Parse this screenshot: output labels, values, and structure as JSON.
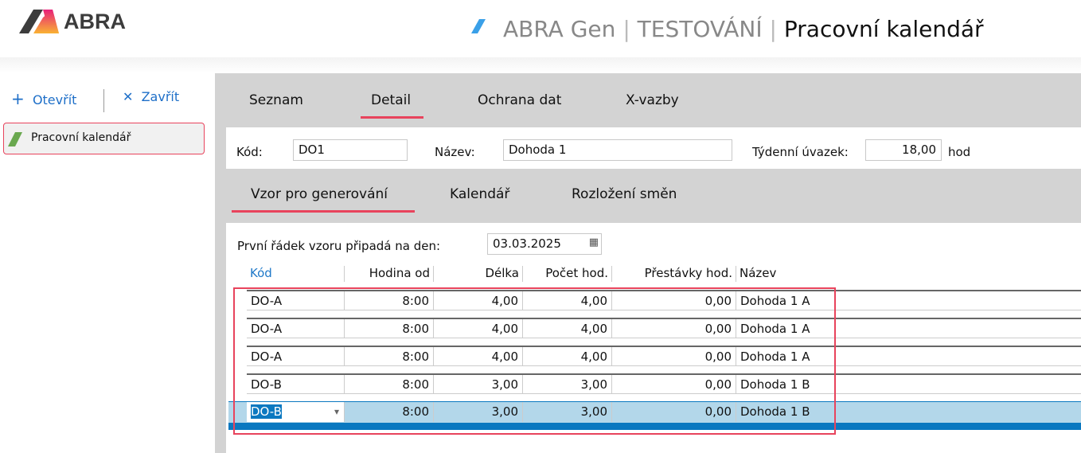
{
  "header": {
    "logo": "ABRA",
    "app": "ABRA Gen",
    "env": "TESTOVÁNÍ",
    "page": "Pracovní kalendář",
    "separator": "|"
  },
  "toolbar": {
    "open": "Otevřít",
    "close": "Zavřít"
  },
  "sidebar": {
    "items": [
      {
        "label": "Pracovní kalendář"
      }
    ]
  },
  "tabs": [
    "Seznam",
    "Detail",
    "Ochrana dat",
    "X-vazby"
  ],
  "form": {
    "kod_label": "Kód:",
    "kod": "DO1",
    "nazev_label": "Název:",
    "nazev": "Dohoda 1",
    "uvazek_label": "Týdenní úvazek:",
    "uvazek": "18,00",
    "unit": "hod"
  },
  "subtabs": [
    "Vzor pro generování",
    "Kalendář",
    "Rozložení směn"
  ],
  "pattern": {
    "label": "První řádek vzoru připadá na den:",
    "date": "03.03.2025"
  },
  "table": {
    "columns": [
      "Kód",
      "Hodina od",
      "Délka",
      "Počet hod.",
      "Přestávky hod.",
      "Název"
    ],
    "rows": [
      [
        "DO-A",
        "8:00",
        "4,00",
        "4,00",
        "0,00",
        "Dohoda 1 A"
      ],
      [
        "DO-A",
        "8:00",
        "4,00",
        "4,00",
        "0,00",
        "Dohoda 1 A"
      ],
      [
        "DO-A",
        "8:00",
        "4,00",
        "4,00",
        "0,00",
        "Dohoda 1 A"
      ],
      [
        "DO-B",
        "8:00",
        "3,00",
        "3,00",
        "0,00",
        "Dohoda 1 B"
      ],
      [
        "DO-B",
        "8:00",
        "3,00",
        "3,00",
        "0,00",
        "Dohoda 1 B"
      ]
    ],
    "selected_row": 4
  },
  "colors": {
    "accent": "#e8435c",
    "link": "#1e6fc8",
    "selection": "#b3d7ea",
    "selection_bar": "#0a78c0"
  }
}
